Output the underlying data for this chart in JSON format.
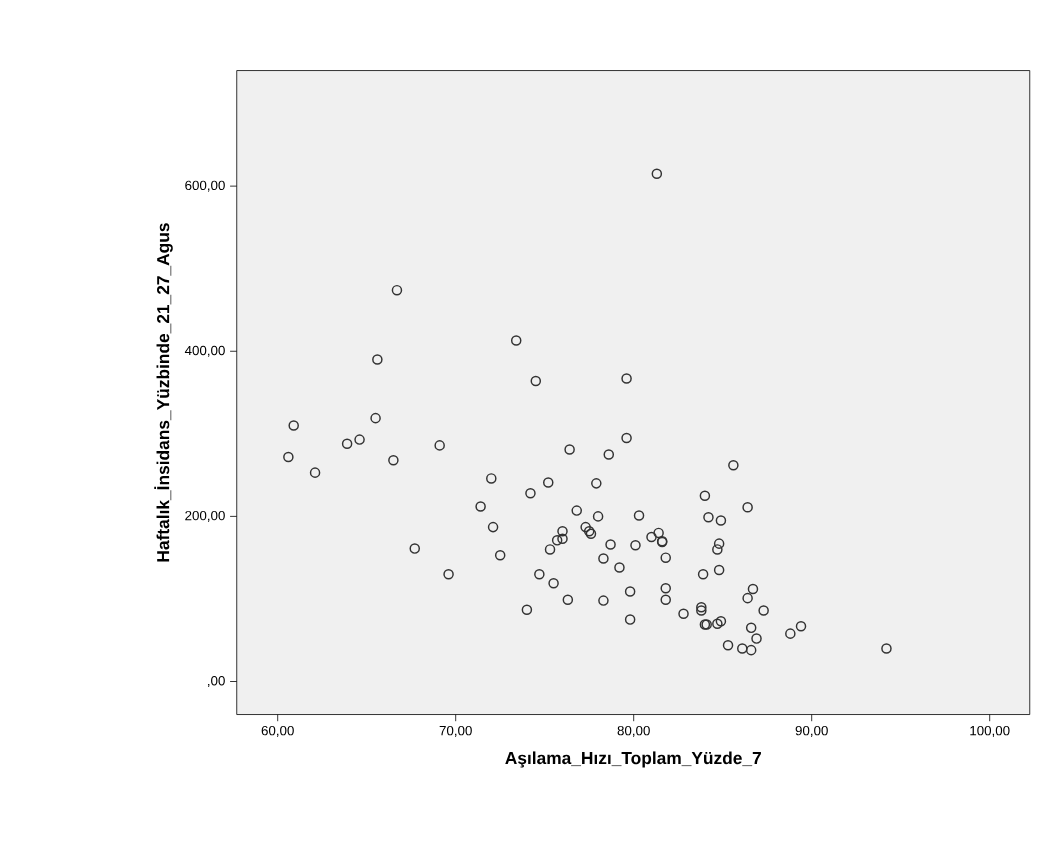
{
  "chart_data": {
    "type": "scatter",
    "xlabel": "Aşılama_Hızı_Toplam_Yüzde_7",
    "ylabel": "Haftalık_İnsidans_Yüzbinde_21_27_Agus",
    "x": [
      81.3,
      66.7,
      73.4,
      65.6,
      74.5,
      79.6,
      60.9,
      65.5,
      63.9,
      64.6,
      60.6,
      66.5,
      62.1,
      69.1,
      76.4,
      79.6,
      85.6,
      72.0,
      75.2,
      78.6,
      77.9,
      84.0,
      86.4,
      71.4,
      76.8,
      74.2,
      80.3,
      78.0,
      84.2,
      84.9,
      72.1,
      77.3,
      77.5,
      77.6,
      76.0,
      76.0,
      75.7,
      75.3,
      81.4,
      81.0,
      81.6,
      81.6,
      80.1,
      78.7,
      84.8,
      84.7,
      81.8,
      78.3,
      79.2,
      84.8,
      83.9,
      74.7,
      72.5,
      69.6,
      75.5,
      67.7,
      79.8,
      81.8,
      81.8,
      86.7,
      86.4,
      87.3,
      82.8,
      83.8,
      83.8,
      84.1,
      84.0,
      84.7,
      84.9,
      86.6,
      86.9,
      85.3,
      86.1,
      86.6,
      88.8,
      89.4,
      94.2,
      79.8,
      78.3,
      76.3,
      74.0
    ],
    "values": [
      615,
      474,
      413,
      390,
      364,
      367,
      310,
      319,
      288,
      293,
      272,
      268,
      253,
      286,
      281,
      295,
      262,
      246,
      241,
      275,
      240,
      225,
      211,
      212,
      207,
      228,
      201,
      200,
      199,
      195,
      187,
      187,
      182,
      179,
      182,
      173,
      171,
      160,
      180,
      175,
      170,
      169,
      165,
      166,
      167,
      160,
      150,
      149,
      138,
      135,
      130,
      130,
      153,
      130,
      119,
      161,
      109,
      113,
      99,
      112,
      101,
      86,
      82,
      90,
      86,
      69,
      69,
      70,
      73,
      65,
      52,
      44,
      40,
      38,
      58,
      67,
      40,
      75,
      98,
      99,
      87
    ],
    "color": "#333333",
    "marker": "circle",
    "xlim": [
      57.7,
      102.25
    ],
    "ylim": [
      -40,
      740
    ],
    "xticks": [
      {
        "value": 60,
        "label": "60,00"
      },
      {
        "value": 70,
        "label": "70,00"
      },
      {
        "value": 80,
        "label": "80,00"
      },
      {
        "value": 90,
        "label": "90,00"
      },
      {
        "value": 100,
        "label": "100,00"
      }
    ],
    "yticks": [
      {
        "value": 0,
        "label": ",00"
      },
      {
        "value": 200,
        "label": "200,00"
      },
      {
        "value": 400,
        "label": "400,00"
      },
      {
        "value": 600,
        "label": "600,00"
      }
    ]
  }
}
